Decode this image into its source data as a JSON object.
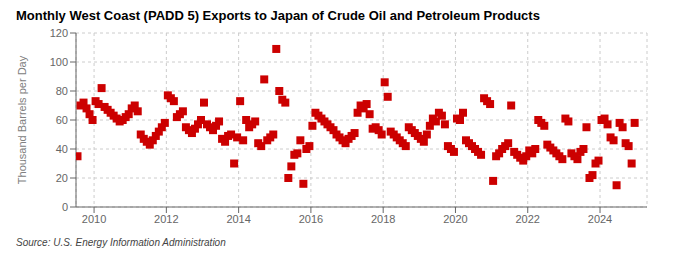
{
  "chart_data": {
    "type": "scatter",
    "title": "Monthly West Coast (PADD 5) Exports to Japan of Crude Oil and Petroleum Products",
    "ylabel": "Thousand Barrels per Day",
    "annotations": [
      "Source: U.S. Energy Information Administration"
    ],
    "color": "#cc0000",
    "marker": "square",
    "grid": true,
    "xlim": [
      2009.5,
      2025.3
    ],
    "xticks": [
      2010,
      2012,
      2014,
      2016,
      2018,
      2020,
      2022,
      2024
    ],
    "ylim": [
      0,
      120
    ],
    "yticks": [
      0,
      20,
      40,
      60,
      80,
      100,
      120
    ],
    "x": [
      2009.5416666666667,
      2009.625,
      2009.7083333333333,
      2009.7916666666667,
      2009.875,
      2009.9583333333333,
      2010.0416666666667,
      2010.125,
      2010.2083333333333,
      2010.2916666666667,
      2010.375,
      2010.4583333333333,
      2010.5416666666667,
      2010.625,
      2010.7083333333333,
      2010.7916666666667,
      2010.875,
      2010.9583333333333,
      2011.0416666666667,
      2011.125,
      2011.2083333333333,
      2011.2916666666667,
      2011.375,
      2011.4583333333333,
      2011.5416666666667,
      2011.625,
      2011.7083333333333,
      2011.7916666666667,
      2011.875,
      2011.9583333333333,
      2012.0416666666667,
      2012.125,
      2012.2083333333333,
      2012.2916666666667,
      2012.375,
      2012.4583333333333,
      2012.5416666666667,
      2012.625,
      2012.7083333333333,
      2012.7916666666667,
      2012.875,
      2012.9583333333333,
      2013.0416666666667,
      2013.125,
      2013.2083333333333,
      2013.2916666666667,
      2013.375,
      2013.4583333333333,
      2013.5416666666667,
      2013.625,
      2013.7083333333333,
      2013.7916666666667,
      2013.875,
      2013.9583333333333,
      2014.0416666666667,
      2014.125,
      2014.2083333333333,
      2014.2916666666667,
      2014.375,
      2014.4583333333333,
      2014.5416666666667,
      2014.625,
      2014.7083333333333,
      2014.7916666666667,
      2014.875,
      2014.9583333333333,
      2015.0416666666667,
      2015.125,
      2015.2083333333333,
      2015.2916666666667,
      2015.375,
      2015.4583333333333,
      2015.5416666666667,
      2015.625,
      2015.7083333333333,
      2015.7916666666667,
      2015.875,
      2015.9583333333333,
      2016.0416666666667,
      2016.125,
      2016.2083333333333,
      2016.2916666666667,
      2016.375,
      2016.4583333333333,
      2016.5416666666667,
      2016.625,
      2016.7083333333333,
      2016.7916666666667,
      2016.875,
      2016.9583333333333,
      2017.0416666666667,
      2017.125,
      2017.2083333333333,
      2017.2916666666667,
      2017.375,
      2017.4583333333333,
      2017.5416666666667,
      2017.625,
      2017.7083333333333,
      2017.7916666666667,
      2017.875,
      2017.9583333333333,
      2018.0416666666667,
      2018.125,
      2018.2083333333333,
      2018.2916666666667,
      2018.375,
      2018.4583333333333,
      2018.5416666666667,
      2018.625,
      2018.7083333333333,
      2018.7916666666667,
      2018.875,
      2018.9583333333333,
      2019.0416666666667,
      2019.125,
      2019.2083333333333,
      2019.2916666666667,
      2019.375,
      2019.4583333333333,
      2019.5416666666667,
      2019.625,
      2019.7083333333333,
      2019.7916666666667,
      2019.875,
      2019.9583333333333,
      2020.0416666666667,
      2020.125,
      2020.2083333333333,
      2020.2916666666667,
      2020.375,
      2020.4583333333333,
      2020.5416666666667,
      2020.625,
      2020.7083333333333,
      2020.7916666666667,
      2020.875,
      2020.9583333333333,
      2021.0416666666667,
      2021.125,
      2021.2083333333333,
      2021.2916666666667,
      2021.375,
      2021.4583333333333,
      2021.5416666666667,
      2021.625,
      2021.7083333333333,
      2021.7916666666667,
      2021.875,
      2021.9583333333333,
      2022.0416666666667,
      2022.125,
      2022.2083333333333,
      2022.2916666666667,
      2022.375,
      2022.4583333333333,
      2022.5416666666667,
      2022.625,
      2022.7083333333333,
      2022.7916666666667,
      2022.875,
      2022.9583333333333,
      2023.0416666666667,
      2023.125,
      2023.2083333333333,
      2023.2916666666667,
      2023.375,
      2023.4583333333333,
      2023.5416666666667,
      2023.625,
      2023.7083333333333,
      2023.7916666666667,
      2023.875,
      2023.9583333333333,
      2024.0416666666667,
      2024.125,
      2024.2083333333333,
      2024.2916666666667,
      2024.375,
      2024.4583333333333,
      2024.5416666666667,
      2024.625,
      2024.7083333333333,
      2024.7916666666667,
      2024.875,
      2024.9583333333333
    ],
    "values": [
      35,
      70,
      72,
      68,
      64,
      60,
      73,
      71,
      82,
      69,
      67,
      65,
      63,
      61,
      59,
      60,
      62,
      64,
      68,
      70,
      66,
      50,
      47,
      45,
      43,
      46,
      49,
      52,
      55,
      58,
      77,
      75,
      73,
      62,
      64,
      66,
      55,
      53,
      51,
      54,
      57,
      60,
      72,
      57,
      55,
      53,
      56,
      59,
      47,
      45,
      49,
      50,
      30,
      48,
      73,
      46,
      60,
      55,
      57,
      59,
      44,
      42,
      88,
      46,
      48,
      50,
      109,
      80,
      74,
      72,
      20,
      28,
      36,
      37,
      46,
      16,
      40,
      42,
      56,
      65,
      63,
      61,
      59,
      57,
      55,
      53,
      50,
      48,
      46,
      44,
      47,
      49,
      51,
      65,
      70,
      68,
      71,
      64,
      54,
      55,
      53,
      50,
      86,
      76,
      52,
      50,
      48,
      46,
      44,
      42,
      55,
      53,
      51,
      49,
      47,
      45,
      50,
      56,
      61,
      59,
      65,
      63,
      57,
      42,
      40,
      38,
      61,
      60,
      65,
      46,
      44,
      42,
      40,
      38,
      36,
      75,
      73,
      71,
      18,
      35,
      37,
      40,
      42,
      44,
      70,
      38,
      36,
      34,
      32,
      35,
      39,
      37,
      40,
      60,
      58,
      56,
      43,
      41,
      39,
      37,
      35,
      33,
      61,
      59,
      37,
      35,
      33,
      38,
      40,
      55,
      20,
      22,
      30,
      32,
      60,
      61,
      57,
      48,
      46,
      15,
      58,
      55,
      44,
      42,
      30,
      58
    ]
  }
}
